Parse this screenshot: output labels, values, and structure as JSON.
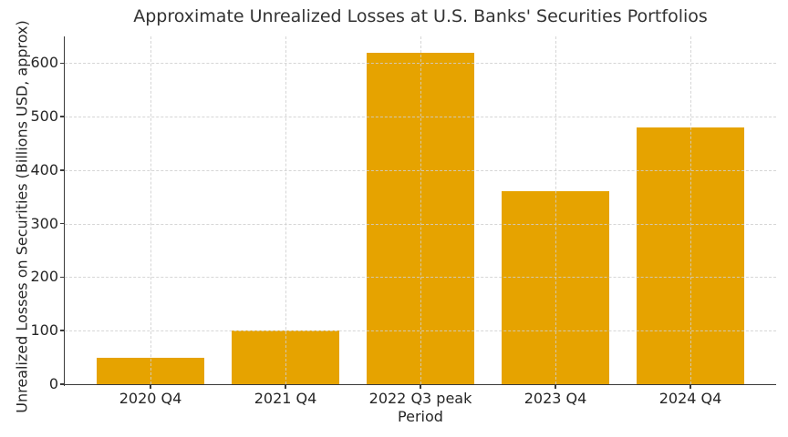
{
  "chart_data": {
    "type": "bar",
    "title": "Approximate Unrealized Losses at U.S. Banks' Securities Portfolios",
    "xlabel": "Period",
    "ylabel": "Unrealized Losses on Securities (Billions USD, approx)",
    "categories": [
      "2020 Q4",
      "2021 Q4",
      "2022 Q3 peak",
      "2023 Q4",
      "2024 Q4"
    ],
    "values": [
      50,
      100,
      620,
      360,
      480
    ],
    "yticks": [
      0,
      100,
      200,
      300,
      400,
      500,
      600
    ],
    "ylim": [
      0,
      650
    ],
    "grid": true,
    "grid_style": "dashed",
    "grid_color": "#cfcfcf",
    "legend": "none",
    "bar_color": "#e6a300",
    "spine_color": "#3a3a3a",
    "text_color": "#262626",
    "background_color": "#ffffff"
  }
}
